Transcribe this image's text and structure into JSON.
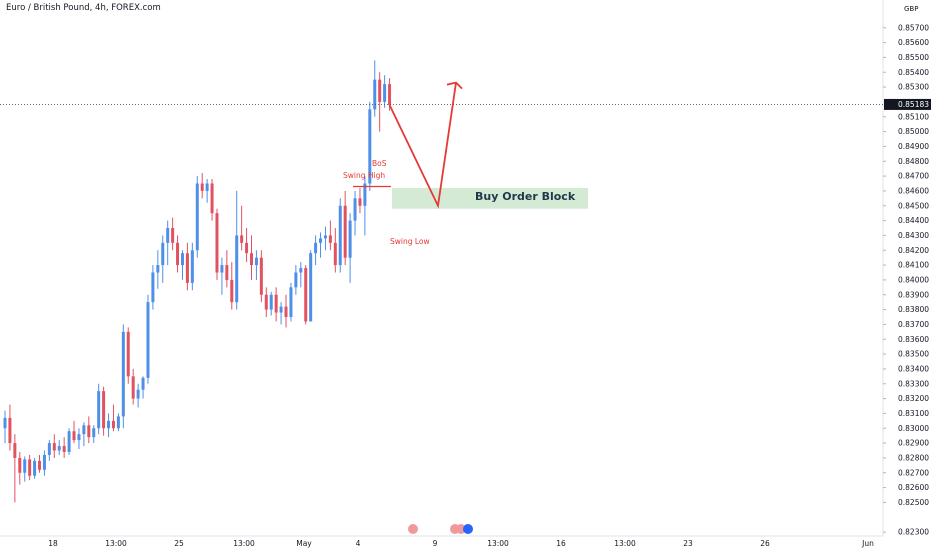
{
  "header": {
    "title": "Euro / British Pound, 4h, FOREX.com"
  },
  "chart_data": {
    "type": "candlestick",
    "title": "Euro / British Pound, 4h, FOREX.com",
    "y_unit": "GBP",
    "ylim": [
      0.8225,
      0.8585
    ],
    "y_ticks": [
      "0.85700",
      "0.85600",
      "0.85500",
      "0.85400",
      "0.85300",
      "0.85183",
      "0.85100",
      "0.85000",
      "0.84900",
      "0.84800",
      "0.84700",
      "0.84600",
      "0.84500",
      "0.84400",
      "0.84300",
      "0.84200",
      "0.84100",
      "0.84000",
      "0.83900",
      "0.83800",
      "0.83700",
      "0.83600",
      "0.83500",
      "0.83400",
      "0.83300",
      "0.83200",
      "0.83100",
      "0.83000",
      "0.82900",
      "0.82800",
      "0.82700",
      "0.82600",
      "0.82500",
      "0.82300"
    ],
    "x_ticks": [
      "18",
      "13:00",
      "25",
      "13:00",
      "May",
      "4",
      "9",
      "13:00",
      "16",
      "13:00",
      "23",
      "26",
      "Jun"
    ],
    "last_price": "0.85183",
    "grid": false,
    "candles": [
      {
        "o": 0.83,
        "h": 0.8312,
        "l": 0.829,
        "c": 0.8307
      },
      {
        "o": 0.8307,
        "h": 0.8316,
        "l": 0.8285,
        "c": 0.829
      },
      {
        "o": 0.829,
        "h": 0.8296,
        "l": 0.825,
        "c": 0.828
      },
      {
        "o": 0.828,
        "h": 0.8284,
        "l": 0.8262,
        "c": 0.827
      },
      {
        "o": 0.827,
        "h": 0.8281,
        "l": 0.8264,
        "c": 0.8279
      },
      {
        "o": 0.8279,
        "h": 0.8282,
        "l": 0.8265,
        "c": 0.8268
      },
      {
        "o": 0.8268,
        "h": 0.828,
        "l": 0.8266,
        "c": 0.8278
      },
      {
        "o": 0.8278,
        "h": 0.8282,
        "l": 0.827,
        "c": 0.8272
      },
      {
        "o": 0.8272,
        "h": 0.8285,
        "l": 0.8268,
        "c": 0.8282
      },
      {
        "o": 0.8282,
        "h": 0.8292,
        "l": 0.8278,
        "c": 0.829
      },
      {
        "o": 0.829,
        "h": 0.8296,
        "l": 0.828,
        "c": 0.8285
      },
      {
        "o": 0.8285,
        "h": 0.8292,
        "l": 0.8282,
        "c": 0.8288
      },
      {
        "o": 0.8288,
        "h": 0.8294,
        "l": 0.828,
        "c": 0.8284
      },
      {
        "o": 0.8284,
        "h": 0.83,
        "l": 0.8282,
        "c": 0.8298
      },
      {
        "o": 0.8298,
        "h": 0.8305,
        "l": 0.829,
        "c": 0.8292
      },
      {
        "o": 0.8292,
        "h": 0.83,
        "l": 0.8286,
        "c": 0.8296
      },
      {
        "o": 0.8296,
        "h": 0.8304,
        "l": 0.8288,
        "c": 0.8302
      },
      {
        "o": 0.8302,
        "h": 0.8308,
        "l": 0.829,
        "c": 0.8294
      },
      {
        "o": 0.8294,
        "h": 0.8302,
        "l": 0.829,
        "c": 0.83
      },
      {
        "o": 0.83,
        "h": 0.833,
        "l": 0.8296,
        "c": 0.8325
      },
      {
        "o": 0.8325,
        "h": 0.8328,
        "l": 0.8295,
        "c": 0.83
      },
      {
        "o": 0.83,
        "h": 0.831,
        "l": 0.8294,
        "c": 0.8305
      },
      {
        "o": 0.8305,
        "h": 0.8316,
        "l": 0.8298,
        "c": 0.83
      },
      {
        "o": 0.83,
        "h": 0.831,
        "l": 0.8298,
        "c": 0.8308
      },
      {
        "o": 0.8308,
        "h": 0.837,
        "l": 0.83,
        "c": 0.8365
      },
      {
        "o": 0.8365,
        "h": 0.8368,
        "l": 0.833,
        "c": 0.8335
      },
      {
        "o": 0.8335,
        "h": 0.834,
        "l": 0.8316,
        "c": 0.832
      },
      {
        "o": 0.832,
        "h": 0.833,
        "l": 0.8314,
        "c": 0.8326
      },
      {
        "o": 0.8326,
        "h": 0.8335,
        "l": 0.832,
        "c": 0.8334
      },
      {
        "o": 0.8334,
        "h": 0.839,
        "l": 0.833,
        "c": 0.8385
      },
      {
        "o": 0.8385,
        "h": 0.841,
        "l": 0.838,
        "c": 0.8405
      },
      {
        "o": 0.8405,
        "h": 0.842,
        "l": 0.8394,
        "c": 0.841
      },
      {
        "o": 0.841,
        "h": 0.843,
        "l": 0.8398,
        "c": 0.8425
      },
      {
        "o": 0.8425,
        "h": 0.844,
        "l": 0.841,
        "c": 0.8435
      },
      {
        "o": 0.8435,
        "h": 0.8442,
        "l": 0.842,
        "c": 0.8425
      },
      {
        "o": 0.8425,
        "h": 0.843,
        "l": 0.8405,
        "c": 0.841
      },
      {
        "o": 0.841,
        "h": 0.842,
        "l": 0.84,
        "c": 0.8418
      },
      {
        "o": 0.8418,
        "h": 0.8425,
        "l": 0.8393,
        "c": 0.8398
      },
      {
        "o": 0.8398,
        "h": 0.8425,
        "l": 0.8393,
        "c": 0.842
      },
      {
        "o": 0.842,
        "h": 0.847,
        "l": 0.8415,
        "c": 0.8465
      },
      {
        "o": 0.8465,
        "h": 0.8472,
        "l": 0.8455,
        "c": 0.846
      },
      {
        "o": 0.846,
        "h": 0.8468,
        "l": 0.8452,
        "c": 0.8465
      },
      {
        "o": 0.8465,
        "h": 0.8468,
        "l": 0.844,
        "c": 0.8445
      },
      {
        "o": 0.8445,
        "h": 0.8448,
        "l": 0.84,
        "c": 0.8405
      },
      {
        "o": 0.8405,
        "h": 0.8415,
        "l": 0.839,
        "c": 0.841
      },
      {
        "o": 0.841,
        "h": 0.842,
        "l": 0.8395,
        "c": 0.84
      },
      {
        "o": 0.84,
        "h": 0.8412,
        "l": 0.838,
        "c": 0.8385
      },
      {
        "o": 0.8385,
        "h": 0.846,
        "l": 0.838,
        "c": 0.843
      },
      {
        "o": 0.843,
        "h": 0.845,
        "l": 0.842,
        "c": 0.8425
      },
      {
        "o": 0.8425,
        "h": 0.8435,
        "l": 0.8412,
        "c": 0.8418
      },
      {
        "o": 0.8418,
        "h": 0.843,
        "l": 0.84,
        "c": 0.841
      },
      {
        "o": 0.841,
        "h": 0.842,
        "l": 0.84,
        "c": 0.8415
      },
      {
        "o": 0.8415,
        "h": 0.842,
        "l": 0.8385,
        "c": 0.839
      },
      {
        "o": 0.839,
        "h": 0.8395,
        "l": 0.8375,
        "c": 0.838
      },
      {
        "o": 0.838,
        "h": 0.8392,
        "l": 0.8376,
        "c": 0.839
      },
      {
        "o": 0.839,
        "h": 0.8395,
        "l": 0.8372,
        "c": 0.8378
      },
      {
        "o": 0.8378,
        "h": 0.8385,
        "l": 0.837,
        "c": 0.8382
      },
      {
        "o": 0.8382,
        "h": 0.839,
        "l": 0.8368,
        "c": 0.8375
      },
      {
        "o": 0.8375,
        "h": 0.8398,
        "l": 0.8372,
        "c": 0.8395
      },
      {
        "o": 0.8395,
        "h": 0.841,
        "l": 0.839,
        "c": 0.8405
      },
      {
        "o": 0.8405,
        "h": 0.8412,
        "l": 0.8395,
        "c": 0.8408
      },
      {
        "o": 0.8408,
        "h": 0.841,
        "l": 0.837,
        "c": 0.8372
      },
      {
        "o": 0.8372,
        "h": 0.842,
        "l": 0.8372,
        "c": 0.8418
      },
      {
        "o": 0.8418,
        "h": 0.843,
        "l": 0.841,
        "c": 0.8425
      },
      {
        "o": 0.8425,
        "h": 0.8432,
        "l": 0.8415,
        "c": 0.8428
      },
      {
        "o": 0.8428,
        "h": 0.8436,
        "l": 0.842,
        "c": 0.843
      },
      {
        "o": 0.843,
        "h": 0.844,
        "l": 0.842,
        "c": 0.8425
      },
      {
        "o": 0.8425,
        "h": 0.8435,
        "l": 0.8405,
        "c": 0.841
      },
      {
        "o": 0.841,
        "h": 0.8455,
        "l": 0.8405,
        "c": 0.845
      },
      {
        "o": 0.845,
        "h": 0.846,
        "l": 0.841,
        "c": 0.8415
      },
      {
        "o": 0.8415,
        "h": 0.8445,
        "l": 0.8398,
        "c": 0.844
      },
      {
        "o": 0.844,
        "h": 0.846,
        "l": 0.843,
        "c": 0.8455
      },
      {
        "o": 0.8455,
        "h": 0.8462,
        "l": 0.8445,
        "c": 0.845
      },
      {
        "o": 0.845,
        "h": 0.847,
        "l": 0.843,
        "c": 0.8465
      },
      {
        "o": 0.8465,
        "h": 0.852,
        "l": 0.846,
        "c": 0.8515
      },
      {
        "o": 0.8515,
        "h": 0.8548,
        "l": 0.851,
        "c": 0.8535
      },
      {
        "o": 0.8535,
        "h": 0.854,
        "l": 0.85,
        "c": 0.852
      },
      {
        "o": 0.852,
        "h": 0.8538,
        "l": 0.8516,
        "c": 0.8532
      },
      {
        "o": 0.8532,
        "h": 0.8536,
        "l": 0.8514,
        "c": 0.8518
      }
    ],
    "annotations": {
      "bos": "BoS",
      "swing_high": "Swing High",
      "swing_low": "Swing Low",
      "order_block": "Buy Order Block"
    },
    "order_block_zone": [
      0.8448,
      0.8462
    ],
    "projection": [
      {
        "date": "9",
        "price": 0.845
      },
      {
        "date": "9",
        "price": 0.8533
      }
    ]
  }
}
